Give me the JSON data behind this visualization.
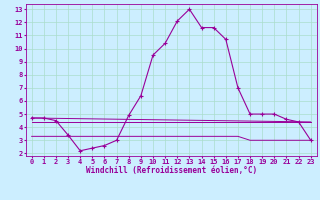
{
  "xlabel": "Windchill (Refroidissement éolien,°C)",
  "bg_color": "#cceeff",
  "grid_color": "#aaddcc",
  "line_color": "#990099",
  "xlim": [
    -0.5,
    23.5
  ],
  "ylim": [
    1.8,
    13.4
  ],
  "xticks": [
    0,
    1,
    2,
    3,
    4,
    5,
    6,
    7,
    8,
    9,
    10,
    11,
    12,
    13,
    14,
    15,
    16,
    17,
    18,
    19,
    20,
    21,
    22,
    23
  ],
  "yticks": [
    2,
    3,
    4,
    5,
    6,
    7,
    8,
    9,
    10,
    11,
    12,
    13
  ],
  "main_x": [
    0,
    1,
    2,
    3,
    4,
    5,
    6,
    7,
    8,
    9,
    10,
    11,
    12,
    13,
    14,
    15,
    16,
    17,
    18,
    19,
    20,
    21,
    22,
    23
  ],
  "main_y": [
    4.7,
    4.7,
    4.5,
    3.4,
    2.2,
    2.4,
    2.6,
    3.0,
    4.9,
    6.4,
    9.5,
    10.4,
    12.1,
    13.0,
    11.6,
    11.6,
    10.7,
    7.0,
    5.0,
    5.0,
    5.0,
    4.6,
    4.4,
    3.0
  ],
  "hline1_x": [
    0,
    23
  ],
  "hline1_y": [
    4.7,
    4.4
  ],
  "hline2_x": [
    0,
    23
  ],
  "hline2_y": [
    4.4,
    4.4
  ],
  "hline3_x": [
    0,
    17,
    18,
    23
  ],
  "hline3_y": [
    3.3,
    3.3,
    3.0,
    3.0
  ],
  "figsize": [
    3.2,
    2.0
  ],
  "dpi": 100
}
